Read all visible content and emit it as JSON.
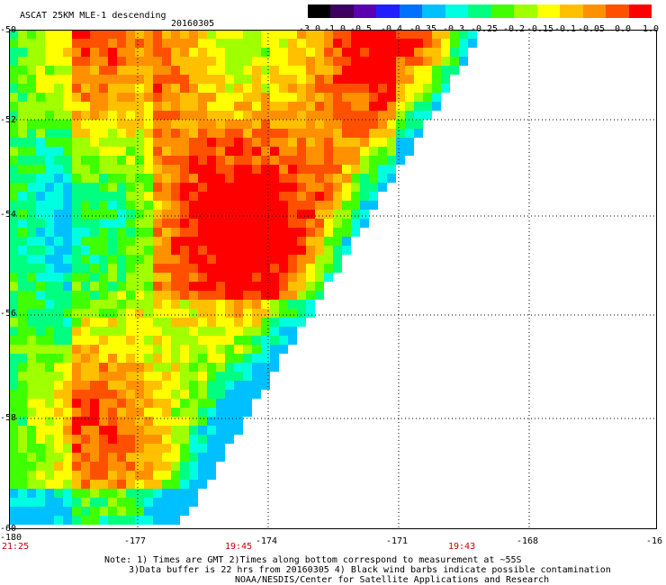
{
  "header": {
    "title": "ASCAT 25KM MLE-1 descending",
    "date": "20160305"
  },
  "colorbar": {
    "labels": [
      "-3.0",
      "-1.0",
      "-0.5",
      "-0.4",
      "-0.35",
      "-0.3",
      "-0.25",
      "-0.2",
      "-0.15",
      "-0.1",
      "-0.05",
      "0.0",
      "1.0"
    ],
    "colors": [
      "#000000",
      "#3b0060",
      "#5a00b0",
      "#2020ff",
      "#0070ff",
      "#00c0ff",
      "#00ffe0",
      "#00ff80",
      "#40ff00",
      "#a0ff00",
      "#ffff00",
      "#ffc000",
      "#ff9000",
      "#ff5000",
      "#ff0000"
    ]
  },
  "map": {
    "lon_labels": [
      "-180",
      "-177",
      "-174",
      "-171",
      "-168",
      "-16"
    ],
    "lat_labels": [
      "-50",
      "-52",
      "-54",
      "-56",
      "-58",
      "-60"
    ],
    "time_labels": [
      "21:25",
      "19:45",
      "19:43"
    ]
  },
  "notes": {
    "line1": "Note: 1) Times are GMT 2)Times along bottom correspond to measurement at ~55S",
    "line2": "3)Data buffer is 22 hrs from 20160305 4) Black wind barbs indicate possible contamination",
    "line3": "NOAA/NESDIS/Center for Satellite Applications and Research"
  },
  "colors": {
    "grid": "#000000",
    "time_label": "#c80000"
  }
}
